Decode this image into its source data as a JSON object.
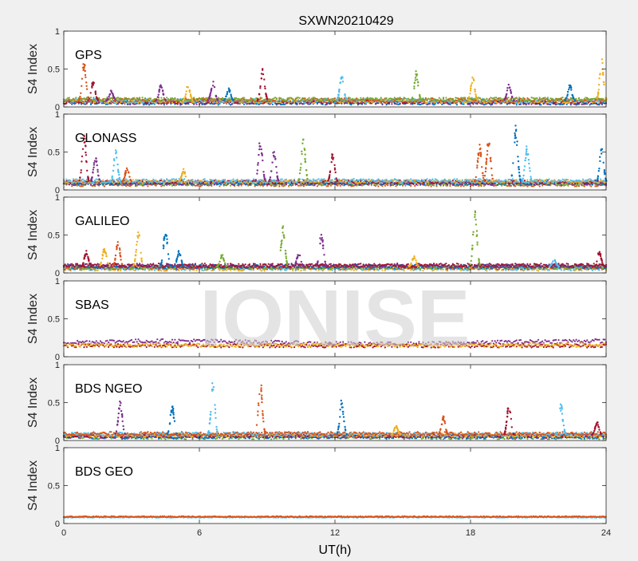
{
  "chart_data": {
    "type": "scatter",
    "title": "SXWN20210429",
    "xlabel": "UT(h)",
    "ylabel": "S4 Index",
    "xlim": [
      0,
      24
    ],
    "ylim": [
      0,
      1
    ],
    "x_ticks": [
      "0",
      "6",
      "12",
      "18",
      "24"
    ],
    "y_ticks": [
      "0",
      "0.5",
      "1"
    ],
    "watermark": "IONISE",
    "series_colors": [
      "#0072BD",
      "#D95319",
      "#EDB120",
      "#7E2F8E",
      "#77AC30",
      "#4DBEEE",
      "#A2142F"
    ],
    "panels": [
      {
        "name": "GPS",
        "baseline": 0.08,
        "spikes": [
          [
            0.9,
            0.62,
            1
          ],
          [
            1.3,
            0.35,
            6
          ],
          [
            2.1,
            0.22,
            3
          ],
          [
            4.3,
            0.3,
            3
          ],
          [
            5.5,
            0.3,
            2
          ],
          [
            6.6,
            0.34,
            3
          ],
          [
            7.3,
            0.25,
            0
          ],
          [
            8.8,
            0.55,
            6
          ],
          [
            12.3,
            0.45,
            5
          ],
          [
            15.6,
            0.48,
            4
          ],
          [
            18.1,
            0.4,
            2
          ],
          [
            19.7,
            0.3,
            3
          ],
          [
            22.4,
            0.3,
            0
          ],
          [
            23.8,
            0.65,
            2
          ]
        ]
      },
      {
        "name": "GLONASS",
        "baseline": 0.1,
        "spikes": [
          [
            0.9,
            0.75,
            6
          ],
          [
            1.4,
            0.45,
            3
          ],
          [
            2.3,
            0.55,
            5
          ],
          [
            2.8,
            0.3,
            1
          ],
          [
            5.3,
            0.28,
            2
          ],
          [
            8.7,
            0.72,
            3
          ],
          [
            9.3,
            0.55,
            3
          ],
          [
            10.6,
            0.7,
            4
          ],
          [
            11.9,
            0.5,
            6
          ],
          [
            18.4,
            0.62,
            1
          ],
          [
            18.8,
            0.72,
            1
          ],
          [
            20.0,
            0.88,
            0
          ],
          [
            20.5,
            0.62,
            5
          ],
          [
            23.8,
            0.6,
            0
          ]
        ]
      },
      {
        "name": "GALILEO",
        "baseline": 0.08,
        "spikes": [
          [
            1.0,
            0.3,
            6
          ],
          [
            1.8,
            0.35,
            2
          ],
          [
            2.4,
            0.45,
            1
          ],
          [
            3.3,
            0.55,
            2
          ],
          [
            4.5,
            0.62,
            0
          ],
          [
            5.1,
            0.3,
            0
          ],
          [
            7.0,
            0.25,
            4
          ],
          [
            9.7,
            0.62,
            4
          ],
          [
            10.4,
            0.28,
            3
          ],
          [
            11.4,
            0.55,
            3
          ],
          [
            15.5,
            0.22,
            2
          ],
          [
            18.2,
            0.85,
            4
          ],
          [
            21.7,
            0.18,
            5
          ],
          [
            23.7,
            0.3,
            6
          ]
        ]
      },
      {
        "name": "SBAS",
        "baseline": 0.15,
        "spikes": []
      },
      {
        "name": "BDS NGEO",
        "baseline": 0.07,
        "spikes": [
          [
            2.5,
            0.55,
            3
          ],
          [
            4.8,
            0.48,
            0
          ],
          [
            6.6,
            0.8,
            5
          ],
          [
            8.7,
            0.82,
            1
          ],
          [
            12.3,
            0.55,
            0
          ],
          [
            14.7,
            0.2,
            2
          ],
          [
            16.8,
            0.32,
            1
          ],
          [
            19.7,
            0.5,
            6
          ],
          [
            22.0,
            0.5,
            5
          ],
          [
            23.6,
            0.25,
            6
          ]
        ]
      },
      {
        "name": "BDS GEO",
        "baseline": 0.09,
        "spikes": []
      }
    ]
  }
}
